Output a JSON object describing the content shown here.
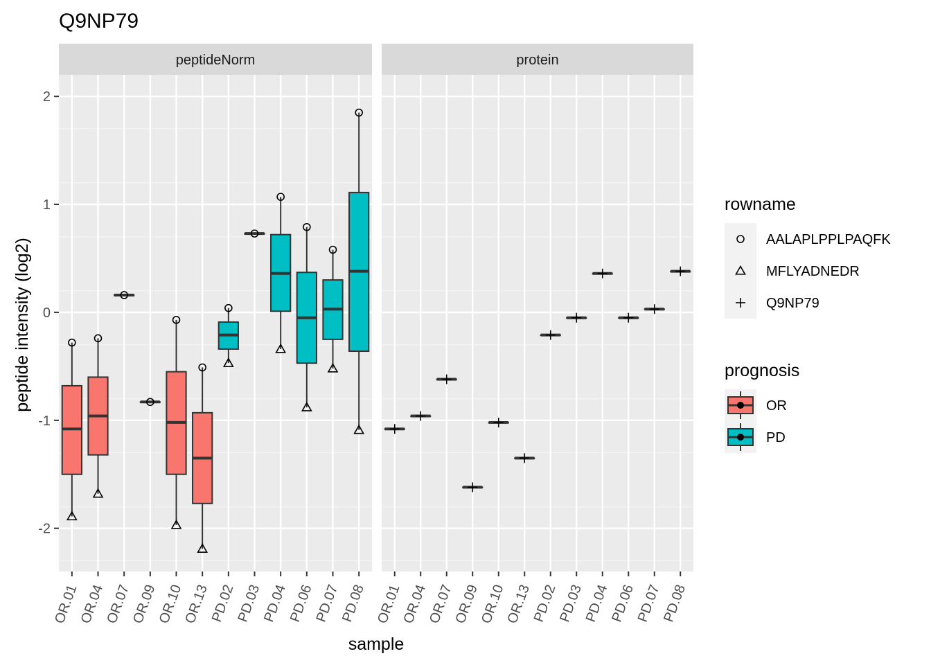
{
  "chart_data": {
    "type": "boxplot",
    "title": "Q9NP79",
    "xlabel": "sample",
    "ylabel": "peptide intensity (log2)",
    "ylim": [
      -2.4,
      2.2
    ],
    "yticks": [
      -2,
      -1,
      0,
      1,
      2
    ],
    "grid": true,
    "legend_position": "right",
    "categories": [
      "OR.01",
      "OR.04",
      "OR.07",
      "OR.09",
      "OR.10",
      "OR.13",
      "PD.02",
      "PD.03",
      "PD.04",
      "PD.06",
      "PD.07",
      "PD.08"
    ],
    "fill_groups": [
      {
        "name": "OR",
        "color": "#F8766D"
      },
      {
        "name": "PD",
        "color": "#00BFC4"
      }
    ],
    "point_shapes": [
      {
        "name": "AALAPLPPLPAQFK",
        "shape": "circle"
      },
      {
        "name": "MFLYADNEDR",
        "shape": "triangle"
      },
      {
        "name": "Q9NP79",
        "shape": "plus"
      }
    ],
    "panels": [
      {
        "title": "peptideNorm",
        "boxes": [
          {
            "sample": "OR.01",
            "group": "OR",
            "min": -1.89,
            "q1": -1.5,
            "median": -1.08,
            "q3": -0.68,
            "max": -0.28
          },
          {
            "sample": "OR.04",
            "group": "OR",
            "min": -1.68,
            "q1": -1.32,
            "median": -0.96,
            "q3": -0.6,
            "max": -0.24
          },
          {
            "sample": "OR.07",
            "group": "OR",
            "min": 0.16,
            "q1": 0.16,
            "median": 0.16,
            "q3": 0.16,
            "max": 0.16
          },
          {
            "sample": "OR.09",
            "group": "OR",
            "min": -0.83,
            "q1": -0.83,
            "median": -0.83,
            "q3": -0.83,
            "max": -0.83
          },
          {
            "sample": "OR.10",
            "group": "OR",
            "min": -1.97,
            "q1": -1.5,
            "median": -1.02,
            "q3": -0.55,
            "max": -0.07
          },
          {
            "sample": "OR.13",
            "group": "OR",
            "min": -2.19,
            "q1": -1.77,
            "median": -1.35,
            "q3": -0.93,
            "max": -0.51
          },
          {
            "sample": "PD.02",
            "group": "PD",
            "min": -0.47,
            "q1": -0.34,
            "median": -0.21,
            "q3": -0.09,
            "max": 0.04
          },
          {
            "sample": "PD.03",
            "group": "PD",
            "min": 0.73,
            "q1": 0.73,
            "median": 0.73,
            "q3": 0.73,
            "max": 0.73
          },
          {
            "sample": "PD.04",
            "group": "PD",
            "min": -0.34,
            "q1": 0.01,
            "median": 0.36,
            "q3": 0.72,
            "max": 1.07
          },
          {
            "sample": "PD.06",
            "group": "PD",
            "min": -0.88,
            "q1": -0.47,
            "median": -0.05,
            "q3": 0.37,
            "max": 0.79
          },
          {
            "sample": "PD.07",
            "group": "PD",
            "min": -0.52,
            "q1": -0.25,
            "median": 0.03,
            "q3": 0.3,
            "max": 0.58
          },
          {
            "sample": "PD.08",
            "group": "PD",
            "min": -1.09,
            "q1": -0.36,
            "median": 0.38,
            "q3": 1.11,
            "max": 1.85
          }
        ],
        "points": [
          {
            "sample": "OR.01",
            "shape": "AALAPLPPLPAQFK",
            "y": -0.28
          },
          {
            "sample": "OR.01",
            "shape": "MFLYADNEDR",
            "y": -1.89
          },
          {
            "sample": "OR.04",
            "shape": "AALAPLPPLPAQFK",
            "y": -0.24
          },
          {
            "sample": "OR.04",
            "shape": "MFLYADNEDR",
            "y": -1.68
          },
          {
            "sample": "OR.07",
            "shape": "AALAPLPPLPAQFK",
            "y": 0.16
          },
          {
            "sample": "OR.09",
            "shape": "AALAPLPPLPAQFK",
            "y": -0.83
          },
          {
            "sample": "OR.10",
            "shape": "AALAPLPPLPAQFK",
            "y": -0.07
          },
          {
            "sample": "OR.10",
            "shape": "MFLYADNEDR",
            "y": -1.97
          },
          {
            "sample": "OR.13",
            "shape": "AALAPLPPLPAQFK",
            "y": -0.51
          },
          {
            "sample": "OR.13",
            "shape": "MFLYADNEDR",
            "y": -2.19
          },
          {
            "sample": "PD.02",
            "shape": "AALAPLPPLPAQFK",
            "y": 0.04
          },
          {
            "sample": "PD.02",
            "shape": "MFLYADNEDR",
            "y": -0.47
          },
          {
            "sample": "PD.03",
            "shape": "AALAPLPPLPAQFK",
            "y": 0.73
          },
          {
            "sample": "PD.04",
            "shape": "AALAPLPPLPAQFK",
            "y": 1.07
          },
          {
            "sample": "PD.04",
            "shape": "MFLYADNEDR",
            "y": -0.34
          },
          {
            "sample": "PD.06",
            "shape": "AALAPLPPLPAQFK",
            "y": 0.79
          },
          {
            "sample": "PD.06",
            "shape": "MFLYADNEDR",
            "y": -0.88
          },
          {
            "sample": "PD.07",
            "shape": "AALAPLPPLPAQFK",
            "y": 0.58
          },
          {
            "sample": "PD.07",
            "shape": "MFLYADNEDR",
            "y": -0.52
          },
          {
            "sample": "PD.08",
            "shape": "AALAPLPPLPAQFK",
            "y": 1.85
          },
          {
            "sample": "PD.08",
            "shape": "MFLYADNEDR",
            "y": -1.09
          }
        ]
      },
      {
        "title": "protein",
        "boxes": [
          {
            "sample": "OR.01",
            "group": "OR",
            "min": -1.08,
            "q1": -1.08,
            "median": -1.08,
            "q3": -1.08,
            "max": -1.08
          },
          {
            "sample": "OR.04",
            "group": "OR",
            "min": -0.96,
            "q1": -0.96,
            "median": -0.96,
            "q3": -0.96,
            "max": -0.96
          },
          {
            "sample": "OR.07",
            "group": "OR",
            "min": -0.62,
            "q1": -0.62,
            "median": -0.62,
            "q3": -0.62,
            "max": -0.62
          },
          {
            "sample": "OR.09",
            "group": "OR",
            "min": -1.62,
            "q1": -1.62,
            "median": -1.62,
            "q3": -1.62,
            "max": -1.62
          },
          {
            "sample": "OR.10",
            "group": "OR",
            "min": -1.02,
            "q1": -1.02,
            "median": -1.02,
            "q3": -1.02,
            "max": -1.02
          },
          {
            "sample": "OR.13",
            "group": "OR",
            "min": -1.35,
            "q1": -1.35,
            "median": -1.35,
            "q3": -1.35,
            "max": -1.35
          },
          {
            "sample": "PD.02",
            "group": "PD",
            "min": -0.21,
            "q1": -0.21,
            "median": -0.21,
            "q3": -0.21,
            "max": -0.21
          },
          {
            "sample": "PD.03",
            "group": "PD",
            "min": -0.05,
            "q1": -0.05,
            "median": -0.05,
            "q3": -0.05,
            "max": -0.05
          },
          {
            "sample": "PD.04",
            "group": "PD",
            "min": 0.36,
            "q1": 0.36,
            "median": 0.36,
            "q3": 0.36,
            "max": 0.36
          },
          {
            "sample": "PD.06",
            "group": "PD",
            "min": -0.05,
            "q1": -0.05,
            "median": -0.05,
            "q3": -0.05,
            "max": -0.05
          },
          {
            "sample": "PD.07",
            "group": "PD",
            "min": 0.03,
            "q1": 0.03,
            "median": 0.03,
            "q3": 0.03,
            "max": 0.03
          },
          {
            "sample": "PD.08",
            "group": "PD",
            "min": 0.38,
            "q1": 0.38,
            "median": 0.38,
            "q3": 0.38,
            "max": 0.38
          }
        ],
        "points": [
          {
            "sample": "OR.01",
            "shape": "Q9NP79",
            "y": -1.08
          },
          {
            "sample": "OR.04",
            "shape": "Q9NP79",
            "y": -0.96
          },
          {
            "sample": "OR.07",
            "shape": "Q9NP79",
            "y": -0.62
          },
          {
            "sample": "OR.09",
            "shape": "Q9NP79",
            "y": -1.62
          },
          {
            "sample": "OR.10",
            "shape": "Q9NP79",
            "y": -1.02
          },
          {
            "sample": "OR.13",
            "shape": "Q9NP79",
            "y": -1.35
          },
          {
            "sample": "PD.02",
            "shape": "Q9NP79",
            "y": -0.21
          },
          {
            "sample": "PD.03",
            "shape": "Q9NP79",
            "y": -0.05
          },
          {
            "sample": "PD.04",
            "shape": "Q9NP79",
            "y": 0.36
          },
          {
            "sample": "PD.06",
            "shape": "Q9NP79",
            "y": -0.05
          },
          {
            "sample": "PD.07",
            "shape": "Q9NP79",
            "y": 0.03
          },
          {
            "sample": "PD.08",
            "shape": "Q9NP79",
            "y": 0.38
          }
        ]
      }
    ],
    "legends": [
      {
        "title": "rowname",
        "entries": [
          "AALAPLPPLPAQFK",
          "MFLYADNEDR",
          "Q9NP79"
        ]
      },
      {
        "title": "prognosis",
        "entries": [
          "OR",
          "PD"
        ]
      }
    ]
  }
}
